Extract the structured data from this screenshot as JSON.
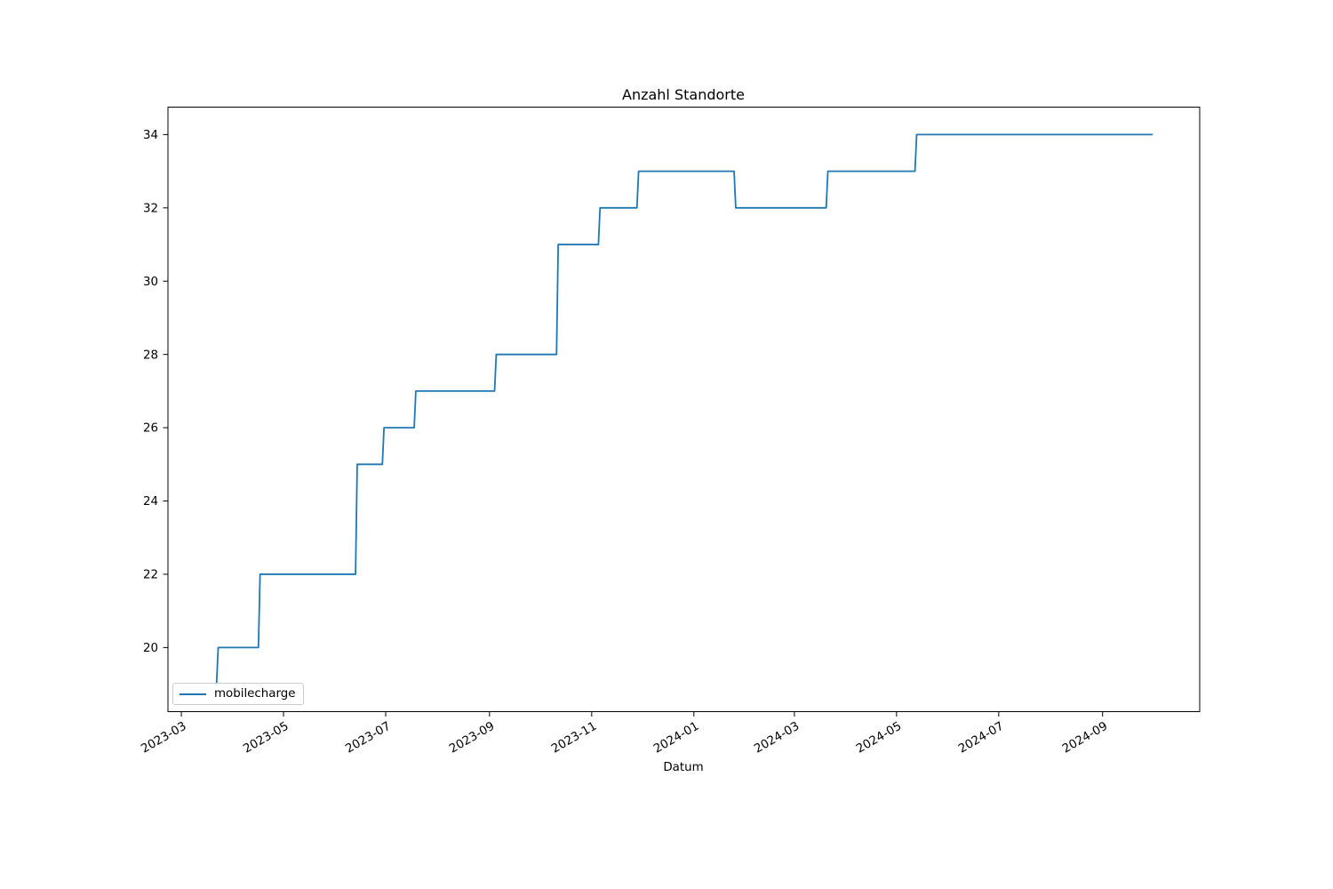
{
  "figure": {
    "background": "#ffffff"
  },
  "chart_data": {
    "type": "line",
    "title": "Anzahl Standorte",
    "xlabel": "Datum",
    "ylabel": "",
    "grid": false,
    "legend": {
      "position": "lower-left",
      "labels": [
        "mobilecharge"
      ]
    },
    "axes": {
      "x_domain": [
        "2023-02-21",
        "2024-10-29"
      ],
      "y_domain": [
        18.25,
        34.75
      ],
      "x_ticks": [
        {
          "date": "2023-03-01",
          "label": "2023-03"
        },
        {
          "date": "2023-05-01",
          "label": "2023-05"
        },
        {
          "date": "2023-07-01",
          "label": "2023-07"
        },
        {
          "date": "2023-09-01",
          "label": "2023-09"
        },
        {
          "date": "2023-11-01",
          "label": "2023-11"
        },
        {
          "date": "2024-01-01",
          "label": "2024-01"
        },
        {
          "date": "2024-03-01",
          "label": "2024-03"
        },
        {
          "date": "2024-05-01",
          "label": "2024-05"
        },
        {
          "date": "2024-07-01",
          "label": "2024-07"
        },
        {
          "date": "2024-09-01",
          "label": "2024-09"
        }
      ],
      "y_ticks": [
        20,
        22,
        24,
        26,
        28,
        30,
        32,
        34
      ],
      "tick_label_rotation_deg": -30
    },
    "series": [
      {
        "name": "mobilecharge",
        "color": "#1f77b4",
        "step": "post",
        "points": [
          {
            "date": "2023-03-21",
            "value": 19
          },
          {
            "date": "2023-03-23",
            "value": 20
          },
          {
            "date": "2023-04-17",
            "value": 22
          },
          {
            "date": "2023-06-14",
            "value": 25
          },
          {
            "date": "2023-06-30",
            "value": 26
          },
          {
            "date": "2023-07-19",
            "value": 27
          },
          {
            "date": "2023-09-05",
            "value": 28
          },
          {
            "date": "2023-10-12",
            "value": 31
          },
          {
            "date": "2023-11-06",
            "value": 32
          },
          {
            "date": "2023-11-29",
            "value": 33
          },
          {
            "date": "2024-01-26",
            "value": 32
          },
          {
            "date": "2024-03-21",
            "value": 33
          },
          {
            "date": "2024-05-13",
            "value": 34
          },
          {
            "date": "2024-10-01",
            "value": 34
          }
        ]
      }
    ]
  }
}
